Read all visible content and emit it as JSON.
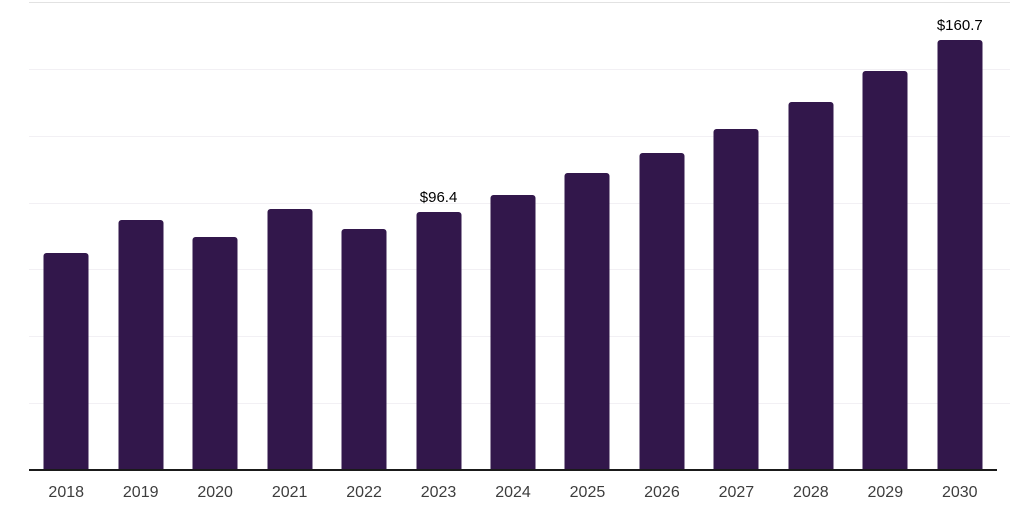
{
  "chart_data": {
    "type": "bar",
    "categories": [
      "2018",
      "2019",
      "2020",
      "2021",
      "2022",
      "2023",
      "2024",
      "2025",
      "2026",
      "2027",
      "2028",
      "2029",
      "2030"
    ],
    "values": [
      81.2,
      93.6,
      87.1,
      97.6,
      90.2,
      96.4,
      102.7,
      110.9,
      118.5,
      127.7,
      137.6,
      149.1,
      160.7
    ],
    "bar_labels": [
      "",
      "",
      "",
      "",
      "",
      "$96.4",
      "",
      "",
      "",
      "",
      "",
      "",
      "$160.7"
    ],
    "title": "",
    "xlabel": "",
    "ylabel": "",
    "ylim": [
      0,
      175
    ],
    "gridline_interval": 25,
    "grid": "horizontal",
    "y_tick_labels_shown": false,
    "legend": "none",
    "unit_prefix": "$",
    "colors": {
      "bar": "#32174b",
      "gridline": "#f2f0f4",
      "top_gridline": "#e2e2e2",
      "axis_line": "#1a1a1a",
      "x_label_text": "#3d3d3d",
      "value_label_text": "#000000",
      "background": "#ffffff"
    }
  }
}
